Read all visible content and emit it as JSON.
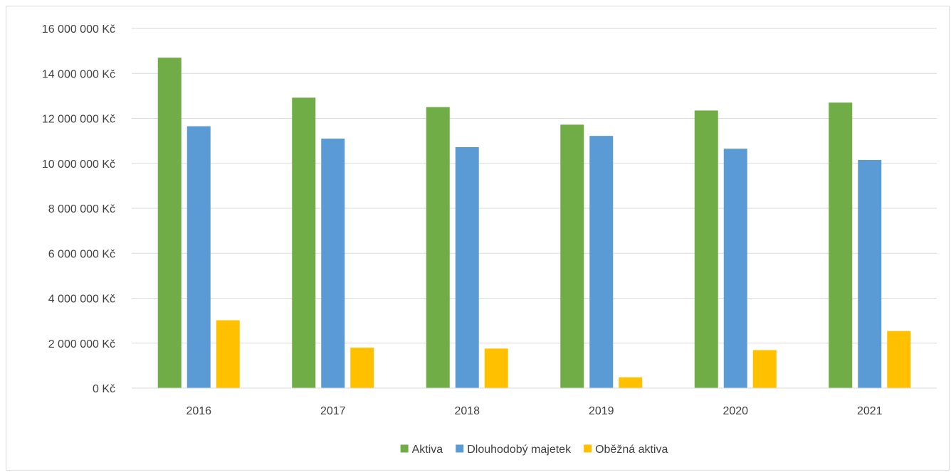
{
  "chart_data": {
    "type": "bar",
    "title": "",
    "xlabel": "",
    "ylabel": "",
    "categories": [
      "2016",
      "2017",
      "2018",
      "2019",
      "2020",
      "2021"
    ],
    "series": [
      {
        "name": "Aktiva",
        "color": "#70ad47",
        "values": [
          14700000,
          12920000,
          12500000,
          11720000,
          12350000,
          12700000
        ]
      },
      {
        "name": "Dlouhodobý majetek",
        "color": "#5b9bd5",
        "values": [
          11650000,
          11100000,
          10720000,
          11220000,
          10650000,
          10150000
        ]
      },
      {
        "name": "Oběžná aktiva",
        "color": "#ffc000",
        "values": [
          3020000,
          1800000,
          1760000,
          480000,
          1690000,
          2540000
        ]
      }
    ],
    "ylim": [
      0,
      16000000
    ],
    "yticks": [
      0,
      2000000,
      4000000,
      6000000,
      8000000,
      10000000,
      12000000,
      14000000,
      16000000
    ],
    "ytick_labels": [
      "0 Kč",
      "2 000 000 Kč",
      "4 000 000 Kč",
      "6 000 000 Kč",
      "8 000 000 Kč",
      "10 000 000 Kč",
      "12 000 000 Kč",
      "14 000 000 Kč",
      "16 000 000 Kč"
    ],
    "grid": true,
    "legend_position": "bottom"
  }
}
